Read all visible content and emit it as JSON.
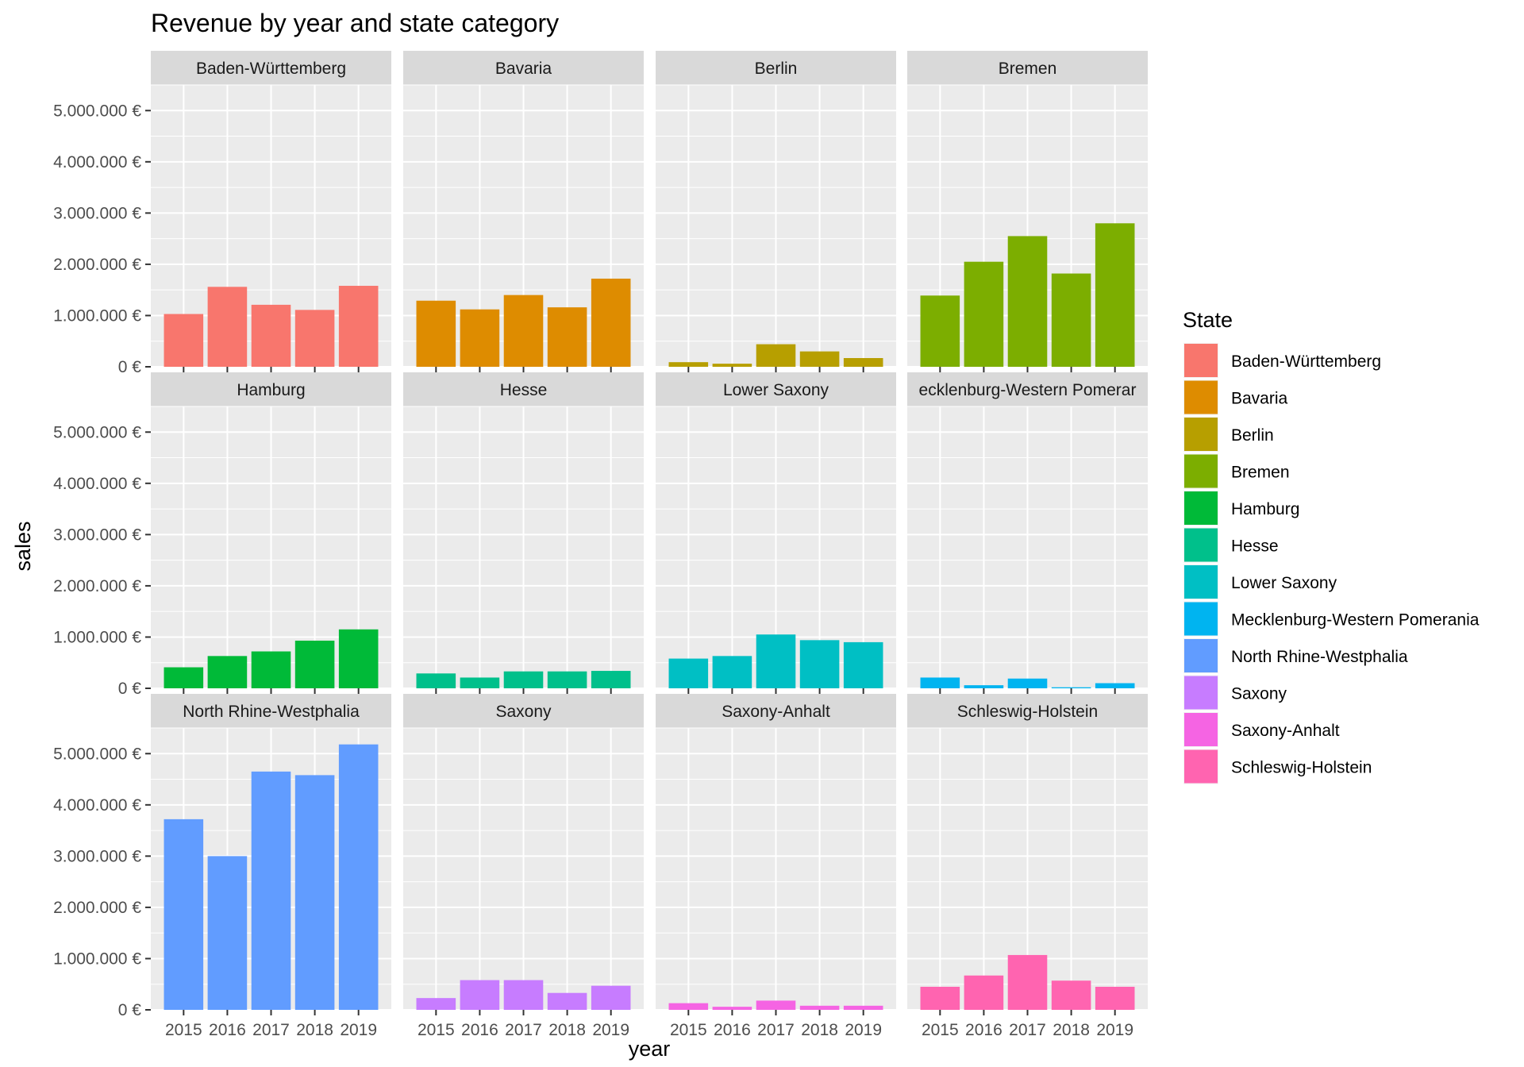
{
  "chart_data": {
    "type": "bar",
    "facet": "wrap",
    "title": "Revenue by year and state category",
    "xlabel": "year",
    "ylabel": "sales",
    "categories": [
      "2015",
      "2016",
      "2017",
      "2018",
      "2019"
    ],
    "ylim": [
      0,
      5500000
    ],
    "y_ticks": [
      0,
      1000000,
      2000000,
      3000000,
      4000000,
      5000000
    ],
    "y_tick_labels": [
      "0 €",
      "1.000.000 €",
      "2.000.000 €",
      "3.000.000 €",
      "4.000.000 €",
      "5.000.000 €"
    ],
    "grid": true,
    "legend": {
      "title": "State",
      "position": "right"
    },
    "panels": [
      {
        "name": "Baden-Württemberg",
        "strip_label": "Baden-Württemberg",
        "color": "#F8766D",
        "values": [
          1030000,
          1560000,
          1210000,
          1110000,
          1580000
        ]
      },
      {
        "name": "Bavaria",
        "strip_label": "Bavaria",
        "color": "#DE8C00",
        "values": [
          1290000,
          1120000,
          1400000,
          1160000,
          1720000
        ]
      },
      {
        "name": "Berlin",
        "strip_label": "Berlin",
        "color": "#B79F00",
        "values": [
          90000,
          60000,
          440000,
          300000,
          170000
        ]
      },
      {
        "name": "Bremen",
        "strip_label": "Bremen",
        "color": "#7CAE00",
        "values": [
          1390000,
          2050000,
          2550000,
          1820000,
          2800000
        ]
      },
      {
        "name": "Hamburg",
        "strip_label": "Hamburg",
        "color": "#00BA38",
        "values": [
          410000,
          630000,
          720000,
          930000,
          1150000
        ]
      },
      {
        "name": "Hesse",
        "strip_label": "Hesse",
        "color": "#00C08B",
        "values": [
          290000,
          210000,
          330000,
          330000,
          340000
        ]
      },
      {
        "name": "Lower Saxony",
        "strip_label": "Lower Saxony",
        "color": "#00BFC4",
        "values": [
          580000,
          630000,
          1050000,
          940000,
          900000
        ]
      },
      {
        "name": "Mecklenburg-Western Pomerania",
        "strip_label": "ecklenburg-Western Pomerar",
        "color": "#00B4F0",
        "values": [
          210000,
          60000,
          190000,
          20000,
          100000
        ]
      },
      {
        "name": "North Rhine-Westphalia",
        "strip_label": "North Rhine-Westphalia",
        "color": "#619CFF",
        "values": [
          3720000,
          3000000,
          4650000,
          4580000,
          5180000
        ]
      },
      {
        "name": "Saxony",
        "strip_label": "Saxony",
        "color": "#C77CFF",
        "values": [
          230000,
          580000,
          580000,
          330000,
          470000
        ]
      },
      {
        "name": "Saxony-Anhalt",
        "strip_label": "Saxony-Anhalt",
        "color": "#F564E3",
        "values": [
          130000,
          60000,
          180000,
          80000,
          80000
        ]
      },
      {
        "name": "Schleswig-Holstein",
        "strip_label": "Schleswig-Holstein",
        "color": "#FF64B0",
        "values": [
          450000,
          670000,
          1070000,
          570000,
          450000
        ]
      }
    ]
  }
}
